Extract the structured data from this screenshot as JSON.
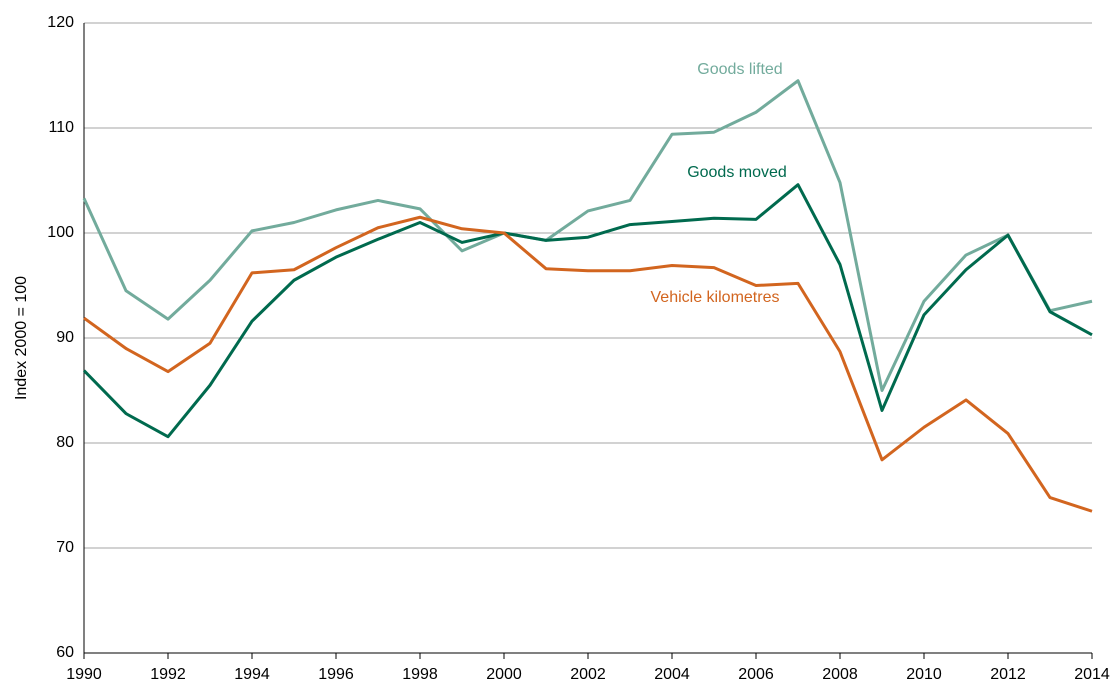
{
  "chart_data": {
    "type": "line",
    "y_label": "Index 2000 = 100",
    "x": [
      1990,
      1991,
      1992,
      1993,
      1994,
      1995,
      1996,
      1997,
      1998,
      1999,
      2000,
      2001,
      2002,
      2003,
      2004,
      2005,
      2006,
      2007,
      2008,
      2009,
      2010,
      2011,
      2012,
      2013,
      2014
    ],
    "series": [
      {
        "name": "Goods lifted",
        "color": "#72ab9c",
        "values": [
          103.3,
          94.5,
          91.8,
          95.5,
          100.2,
          101,
          102.2,
          103.1,
          102.3,
          98.3,
          100,
          99.3,
          102.1,
          103.1,
          109.4,
          109.6,
          111.5,
          114.5,
          104.8,
          85,
          93.5,
          97.9,
          99.8,
          92.6,
          93.5
        ]
      },
      {
        "name": "Goods moved",
        "color": "#006a4e",
        "values": [
          86.9,
          82.8,
          80.6,
          85.5,
          91.6,
          95.5,
          97.7,
          99.4,
          101,
          99.1,
          100,
          99.3,
          99.6,
          100.8,
          101.1,
          101.4,
          101.3,
          104.6,
          97,
          83.1,
          92.2,
          96.5,
          99.8,
          92.5,
          90.3
        ]
      },
      {
        "name": "Vehicle kilometres",
        "color": "#d2651f",
        "values": [
          91.9,
          89,
          86.8,
          89.5,
          96.2,
          96.5,
          98.6,
          100.5,
          101.5,
          100.4,
          100,
          96.6,
          96.4,
          96.4,
          96.9,
          96.7,
          95,
          95.2,
          88.7,
          78.4,
          81.5,
          84.1,
          80.9,
          74.8,
          73.5
        ]
      }
    ],
    "xlim": [
      1990,
      2014
    ],
    "xticks": [
      1990,
      1992,
      1994,
      1996,
      1998,
      2000,
      2002,
      2004,
      2006,
      2008,
      2010,
      2012,
      2014
    ],
    "ylim": [
      60,
      120
    ],
    "yticks": [
      60,
      70,
      80,
      90,
      100,
      110,
      120
    ],
    "grid": true
  }
}
